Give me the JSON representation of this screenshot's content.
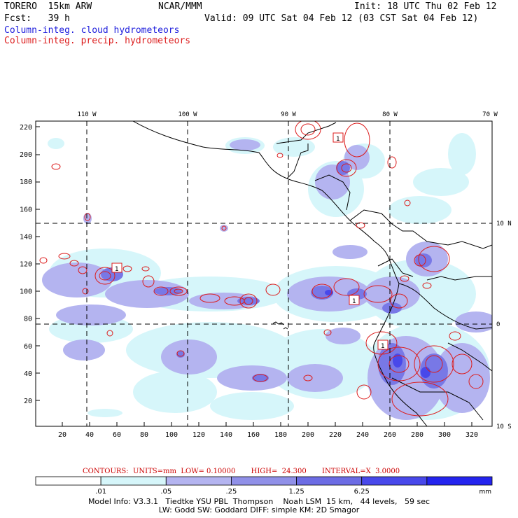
{
  "header": {
    "model": "TORERO  15km ARW",
    "org": "NCAR/MMM",
    "init": "Init: 18 UTC Thu 02 Feb 12",
    "fcst": "Fcst:   39 h",
    "valid": "Valid: 09 UTC Sat 04 Feb 12 (03 CST Sat 04 Feb 12)",
    "field1": "Column-integ. cloud hydrometeors",
    "field2": "Column-integ. precip. hydrometeors"
  },
  "axes": {
    "lon_labels": [
      "110 W",
      "100 W",
      "90 W",
      "80 W",
      "70 W"
    ],
    "lat_labels": [
      "10 N",
      "0",
      "10 S"
    ],
    "x_ticks": [
      "20",
      "40",
      "60",
      "80",
      "100",
      "120",
      "140",
      "160",
      "180",
      "200",
      "220",
      "240",
      "260",
      "280",
      "300",
      "320"
    ],
    "y_ticks": [
      "220",
      "200",
      "180",
      "160",
      "140",
      "120",
      "100",
      "80",
      "60",
      "40",
      "20"
    ]
  },
  "boxes": {
    "label1": "1",
    "label2": "1",
    "label3": "1",
    "label4": "1",
    "label5": "1"
  },
  "contours": {
    "caption": "CONTOURS:  UNITS=mm  LOW= 0.10000       HIGH=  24.300       INTERVAL=X  3.0000"
  },
  "legend": {
    "ticks": [
      ".01",
      ".05",
      ".25",
      "1.25",
      "6.25"
    ],
    "unit": "mm",
    "colors": [
      "#ffffff",
      "#d6f6fa",
      "#b4b4f0",
      "#9090e8",
      "#6c6ce4",
      "#4848ea",
      "#2424ee"
    ]
  },
  "footer": {
    "line1": "Model Info: V3.3.1   Tiedtke YSU PBL  Thompson    Noah LSM  15 km,   44 levels,   59 sec",
    "line2": "LW: Godd SW: Goddard DIFF: simple KM: 2D Smagor"
  },
  "colors": {
    "cloud": "#1c1cdc",
    "precip": "#dc1c1c",
    "grid": "#000000"
  }
}
